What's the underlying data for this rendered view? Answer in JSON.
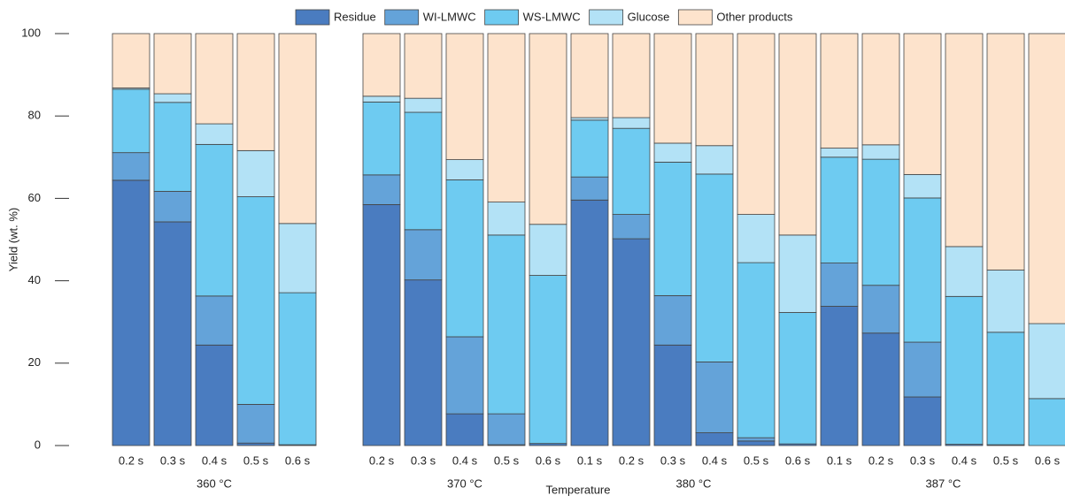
{
  "chart_data": {
    "type": "stacked-bar",
    "y_label": "Yield (wt. %)",
    "x_label": "Temperature",
    "groups": [
      {
        "label": "360 °C",
        "categories": [
          "0.2 s",
          "0.3 s",
          "0.4 s",
          "0.5 s",
          "0.6 s"
        ]
      },
      {
        "label": "370 °C",
        "categories": [
          "0.2 s",
          "0.3 s",
          "0.4 s",
          "0.5 s",
          "0.6 s"
        ]
      },
      {
        "label": "380 °C",
        "categories": [
          "0.1 s",
          "0.2 s",
          "0.3 s",
          "0.4 s",
          "0.5 s",
          "0.6 s"
        ]
      },
      {
        "label": "387 °C",
        "categories": [
          "0.1 s",
          "0.2 s",
          "0.3 s",
          "0.4 s",
          "0.5 s",
          "0.6 s"
        ]
      }
    ],
    "series": [
      {
        "name": "Residue",
        "color": "#4a7cc0",
        "values": [
          64.4,
          54.3,
          24.4,
          0.6,
          0.2,
          58.5,
          40.2,
          7.7,
          0.2,
          0.5,
          59.6,
          50.2,
          24.4,
          3.1,
          1.1,
          0.4,
          33.8,
          27.3,
          11.8,
          0.3,
          0.2,
          0
        ]
      },
      {
        "name": "WI-LMWC",
        "color": "#64a3d9",
        "values": [
          6.7,
          7.4,
          11.9,
          9.4,
          0,
          7.2,
          12.2,
          18.7,
          7.5,
          0,
          5.6,
          5.9,
          12.0,
          17.2,
          0.8,
          0,
          10.5,
          11.6,
          13.3,
          0,
          0,
          0
        ]
      },
      {
        "name": "WS-LMWC",
        "color": "#6ecbf1",
        "values": [
          15.4,
          21.6,
          36.8,
          50.4,
          36.9,
          17.7,
          28.5,
          38.1,
          43.4,
          40.8,
          13.8,
          20.9,
          32.4,
          45.6,
          42.5,
          31.9,
          25.7,
          30.6,
          35.0,
          35.9,
          27.3,
          11.4
        ]
      },
      {
        "name": "Glucose",
        "color": "#b3e2f6",
        "values": [
          0.3,
          2.1,
          5.0,
          11.2,
          16.8,
          1.4,
          3.4,
          4.9,
          8.0,
          12.4,
          0.6,
          2.6,
          4.6,
          6.9,
          11.7,
          18.8,
          2.2,
          3.5,
          5.7,
          12.1,
          15.1,
          18.2
        ]
      },
      {
        "name": "Other products",
        "color": "#fde3cc",
        "values": [
          13.2,
          14.6,
          21.9,
          28.4,
          46.1,
          15.2,
          15.7,
          30.6,
          40.9,
          46.3,
          20.4,
          20.4,
          26.6,
          27.2,
          43.9,
          48.9,
          27.8,
          27.0,
          34.2,
          51.7,
          57.4,
          70.4
        ]
      }
    ],
    "ylim": [
      0,
      100
    ],
    "yticks": [
      0,
      20,
      40,
      60,
      80,
      100
    ]
  }
}
